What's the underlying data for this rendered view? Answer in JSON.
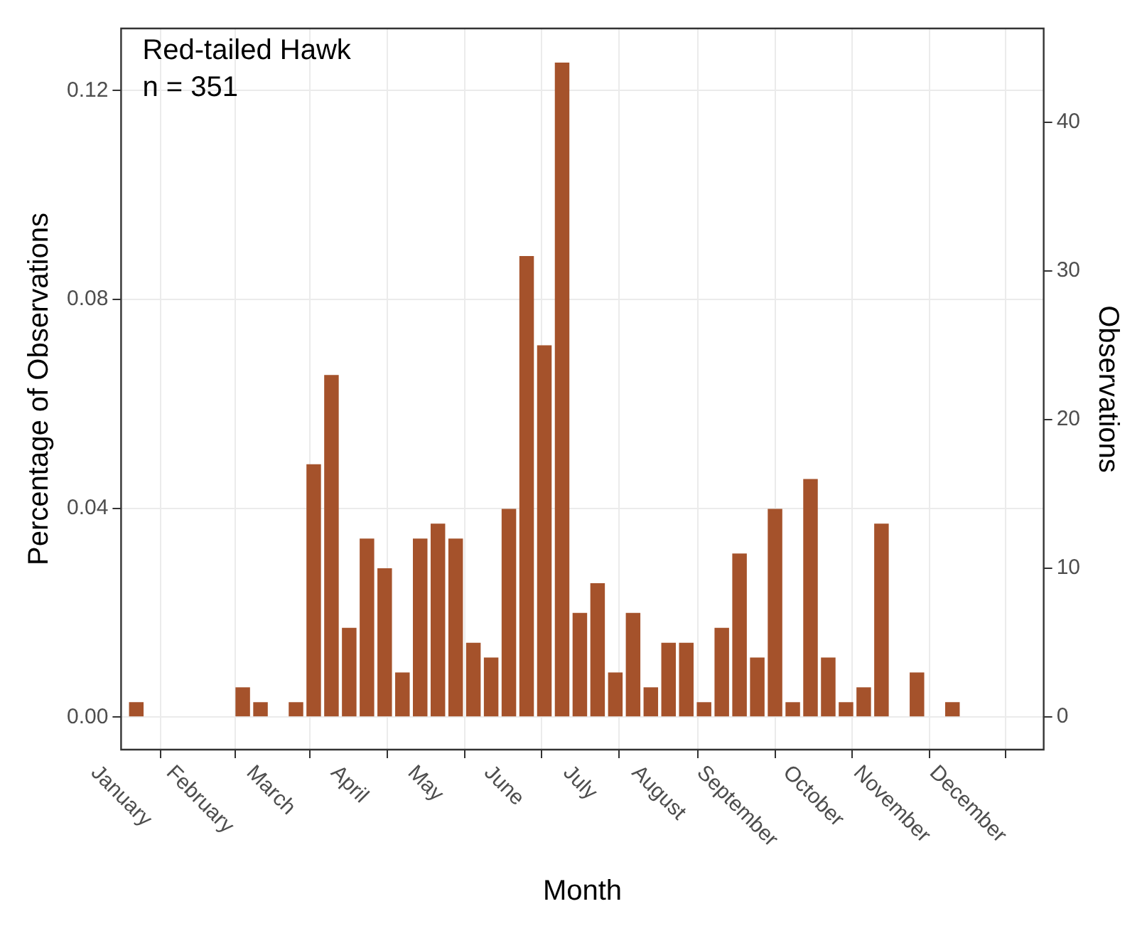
{
  "chart_data": {
    "type": "bar",
    "annotations": [
      "Red-tailed Hawk",
      "n = 351"
    ],
    "xlabel": "Month",
    "ylabel": "Percentage of Observations",
    "y2label": "Observations",
    "x": [
      "--01-07",
      "--01-14",
      "--01-21",
      "--01-28",
      "--02-04",
      "--02-11",
      "--02-18",
      "--02-25",
      "--03-04",
      "--03-11",
      "--03-18",
      "--03-25",
      "--04-01",
      "--04-08",
      "--04-15",
      "--04-22",
      "--04-29",
      "--05-06",
      "--05-13",
      "--05-20",
      "--05-27",
      "--06-03",
      "--06-10",
      "--06-17",
      "--06-24",
      "--07-01",
      "--07-08",
      "--07-15",
      "--07-22",
      "--07-29",
      "--08-05",
      "--08-12",
      "--08-19",
      "--08-26",
      "--09-02",
      "--09-09",
      "--09-16",
      "--09-23",
      "--09-30",
      "--10-07",
      "--10-14",
      "--10-21",
      "--10-28",
      "--11-04",
      "--11-11",
      "--11-18",
      "--11-25"
    ],
    "series": [
      {
        "axis": "y2",
        "color": "#a5522b",
        "values": [
          1,
          0,
          0,
          0,
          0,
          0,
          2,
          1,
          0,
          1,
          17,
          23,
          6,
          12,
          10,
          3,
          12,
          13,
          12,
          5,
          4,
          14,
          31,
          25,
          44,
          7,
          9,
          3,
          7,
          2,
          5,
          5,
          1,
          6,
          11,
          4,
          14,
          1,
          16,
          4,
          1,
          2,
          13,
          0,
          3,
          0,
          1
        ]
      }
    ],
    "xlim": [
      "--01-01",
      "--12-31"
    ],
    "xticks": [
      {
        "value": "--01-01",
        "label": "January"
      },
      {
        "value": "--02-01",
        "label": "February"
      },
      {
        "value": "--03-01",
        "label": "March"
      },
      {
        "value": "--04-01",
        "label": "April"
      },
      {
        "value": "--05-01",
        "label": "May"
      },
      {
        "value": "--06-01",
        "label": "June"
      },
      {
        "value": "--07-01",
        "label": "July"
      },
      {
        "value": "--08-01",
        "label": "August"
      },
      {
        "value": "--09-01",
        "label": "September"
      },
      {
        "value": "--10-01",
        "label": "October"
      },
      {
        "value": "--11-01",
        "label": "November"
      },
      {
        "value": "--12-01",
        "label": "December"
      }
    ],
    "ylim": [
      -0.0062,
      0.1319
    ],
    "yticks": [
      {
        "value": 0,
        "label": "0.00"
      },
      {
        "value": 0.04,
        "label": "0.04"
      },
      {
        "value": 0.08,
        "label": "0.08"
      },
      {
        "value": 0.12,
        "label": "0.12"
      }
    ],
    "y2lim": [
      -2.19,
      46.3
    ],
    "y2ticks": [
      0,
      10,
      20,
      30,
      40
    ],
    "grid": true,
    "legend": false
  }
}
